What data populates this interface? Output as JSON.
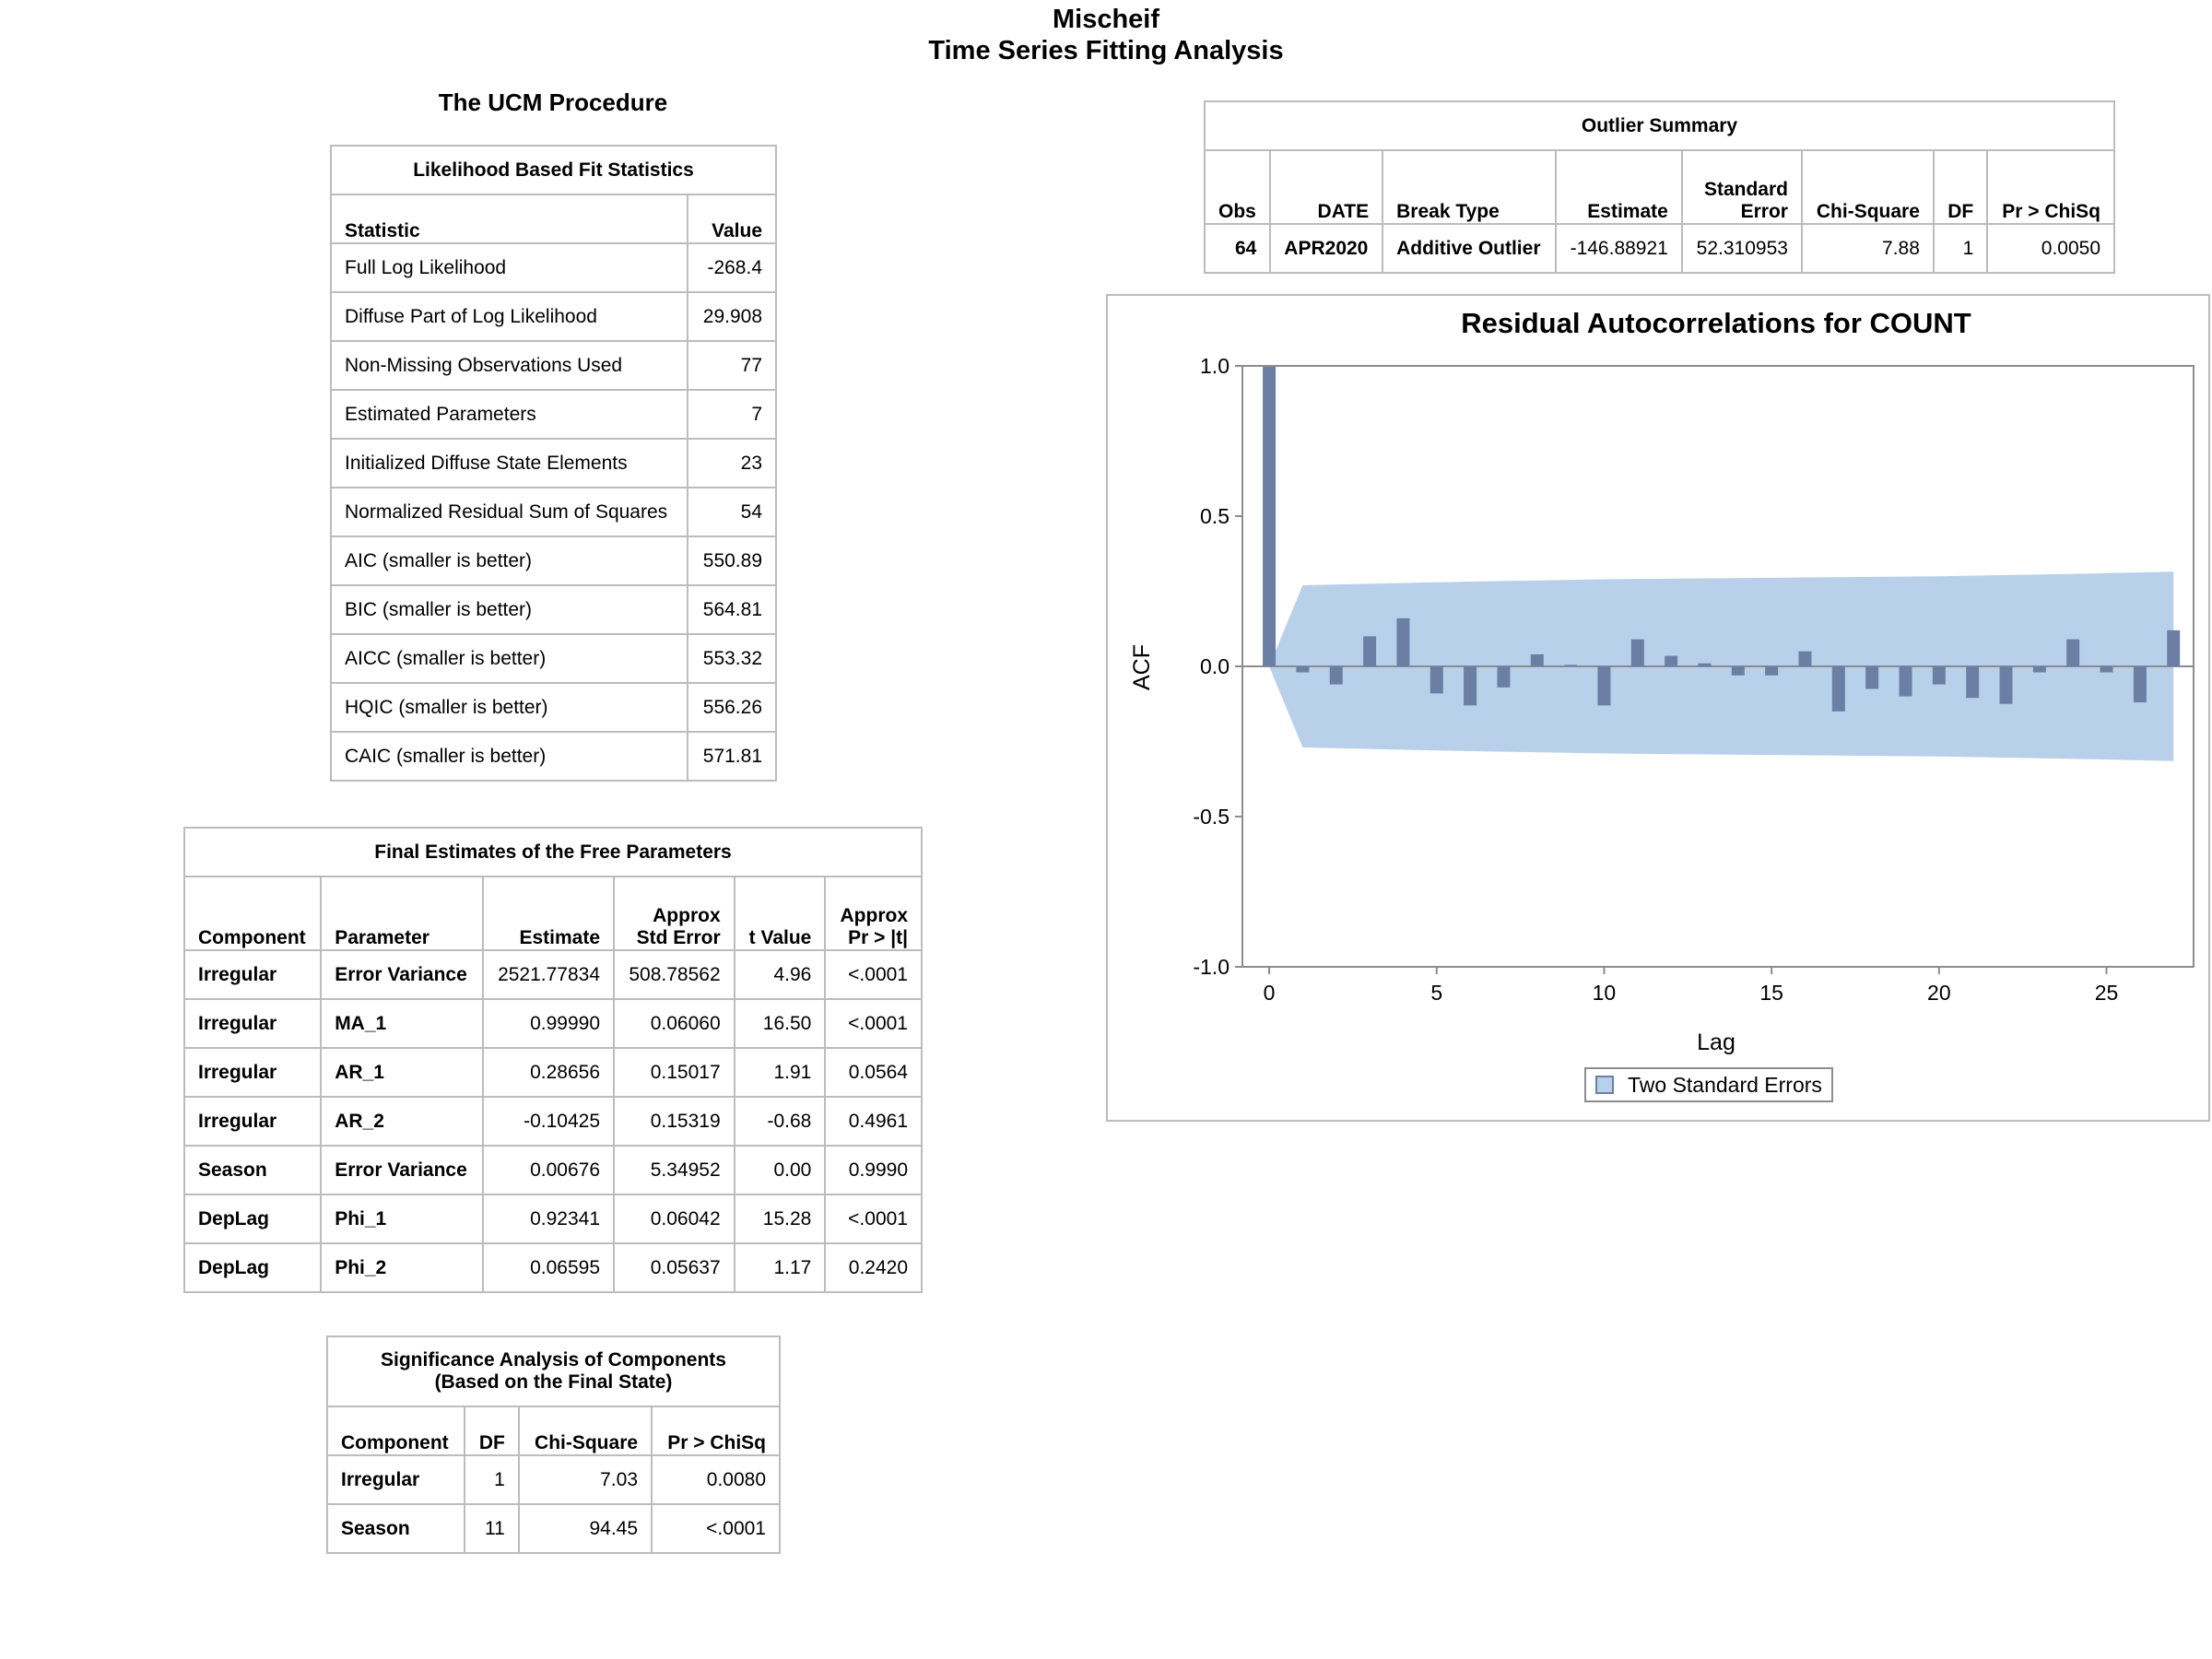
{
  "page": {
    "title": "Mischeif",
    "subtitle": "Time Series Fitting Analysis",
    "procedure": "The UCM Procedure"
  },
  "fit_stats": {
    "caption": "Likelihood Based Fit Statistics",
    "headers": [
      "Statistic",
      "Value"
    ],
    "rows": [
      [
        "Full Log Likelihood",
        "-268.4"
      ],
      [
        "Diffuse Part of Log Likelihood",
        "29.908"
      ],
      [
        "Non-Missing Observations Used",
        "77"
      ],
      [
        "Estimated Parameters",
        "7"
      ],
      [
        "Initialized Diffuse State Elements",
        "23"
      ],
      [
        "Normalized Residual Sum of Squares",
        "54"
      ],
      [
        "AIC (smaller is better)",
        "550.89"
      ],
      [
        "BIC (smaller is better)",
        "564.81"
      ],
      [
        "AICC (smaller is better)",
        "553.32"
      ],
      [
        "HQIC (smaller is better)",
        "556.26"
      ],
      [
        "CAIC (smaller is better)",
        "571.81"
      ]
    ]
  },
  "final_estimates": {
    "caption": "Final Estimates of the Free Parameters",
    "headers": [
      [
        "Component"
      ],
      [
        "Parameter"
      ],
      [
        "Estimate"
      ],
      [
        "Approx",
        "Std Error"
      ],
      [
        "t Value"
      ],
      [
        "Approx",
        "Pr > |t|"
      ]
    ],
    "rows": [
      [
        "Irregular",
        "Error Variance",
        "2521.77834",
        "508.78562",
        "4.96",
        "<.0001"
      ],
      [
        "Irregular",
        "MA_1",
        "0.99990",
        "0.06060",
        "16.50",
        "<.0001"
      ],
      [
        "Irregular",
        "AR_1",
        "0.28656",
        "0.15017",
        "1.91",
        "0.0564"
      ],
      [
        "Irregular",
        "AR_2",
        "-0.10425",
        "0.15319",
        "-0.68",
        "0.4961"
      ],
      [
        "Season",
        "Error Variance",
        "0.00676",
        "5.34952",
        "0.00",
        "0.9990"
      ],
      [
        "DepLag",
        "Phi_1",
        "0.92341",
        "0.06042",
        "15.28",
        "<.0001"
      ],
      [
        "DepLag",
        "Phi_2",
        "0.06595",
        "0.05637",
        "1.17",
        "0.2420"
      ]
    ]
  },
  "significance": {
    "caption_line1": "Significance Analysis of Components",
    "caption_line2": "(Based on the Final State)",
    "headers": [
      "Component",
      "DF",
      "Chi-Square",
      "Pr > ChiSq"
    ],
    "rows": [
      [
        "Irregular",
        "1",
        "7.03",
        "0.0080"
      ],
      [
        "Season",
        "11",
        "94.45",
        "<.0001"
      ]
    ]
  },
  "outliers": {
    "caption": "Outlier Summary",
    "headers": [
      [
        "Obs"
      ],
      [
        "DATE"
      ],
      [
        "Break Type"
      ],
      [
        "Estimate"
      ],
      [
        "Standard",
        "Error"
      ],
      [
        "Chi-Square"
      ],
      [
        "DF"
      ],
      [
        "Pr > ChiSq"
      ]
    ],
    "rows": [
      [
        "64",
        "APR2020",
        "Additive Outlier",
        "-146.88921",
        "52.310953",
        "7.88",
        "1",
        "0.0050"
      ]
    ]
  },
  "chart_data": {
    "type": "bar",
    "title": "Residual Autocorrelations for COUNT",
    "xlabel": "Lag",
    "ylabel": "ACF",
    "xlim": [
      -0.8,
      27.6
    ],
    "ylim": [
      -1.0,
      1.0
    ],
    "xticks": [
      0,
      5,
      10,
      15,
      20,
      25
    ],
    "yticks": [
      -1.0,
      -0.5,
      0.0,
      0.5,
      1.0
    ],
    "ytick_labels": [
      "-1.0",
      "-0.5",
      "0.0",
      "0.5",
      "1.0"
    ],
    "lags": [
      0,
      1,
      2,
      3,
      4,
      5,
      6,
      7,
      8,
      9,
      10,
      11,
      12,
      13,
      14,
      15,
      16,
      17,
      18,
      19,
      20,
      21,
      22,
      23,
      24,
      25,
      26,
      27
    ],
    "acf": [
      1.0,
      -0.02,
      -0.06,
      0.1,
      0.16,
      -0.09,
      -0.13,
      -0.07,
      0.04,
      0.005,
      -0.13,
      0.09,
      0.035,
      0.01,
      -0.03,
      -0.03,
      0.05,
      -0.15,
      -0.075,
      -0.1,
      -0.06,
      -0.105,
      -0.125,
      -0.02,
      0.09,
      -0.02,
      -0.12,
      0.12
    ],
    "two_se_band": {
      "lags": [
        0,
        1,
        5,
        10,
        15,
        20,
        25,
        27
      ],
      "upper": [
        0.0,
        0.27,
        0.28,
        0.29,
        0.295,
        0.3,
        0.31,
        0.315
      ],
      "lower": [
        0.0,
        -0.27,
        -0.28,
        -0.29,
        -0.295,
        -0.3,
        -0.31,
        -0.315
      ]
    },
    "legend": {
      "label": "Two Standard Errors",
      "position": "bottom"
    },
    "colors": {
      "bar": "#6b7fa4",
      "band": "#b9d0ea",
      "axis": "#8c8c8c"
    }
  }
}
